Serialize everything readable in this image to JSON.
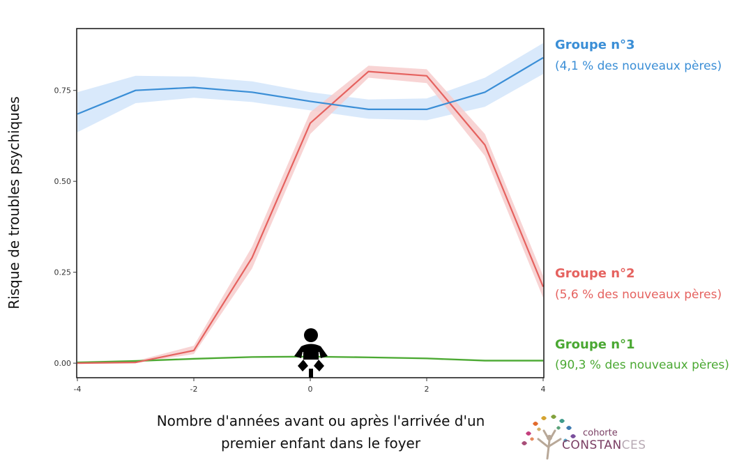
{
  "chart_data": {
    "type": "line",
    "title": "",
    "xlabel_lines": [
      "Nombre d'années avant ou après l'arrivée d'un",
      "premier enfant dans le foyer"
    ],
    "ylabel": "Risque de troubles psychiques",
    "xlim": [
      -4,
      4
    ],
    "ylim": [
      -0.04,
      0.92
    ],
    "x_ticks": [
      -4,
      -2,
      0,
      2,
      4
    ],
    "x_tick_labels": [
      "-4",
      "-2",
      "0",
      "2",
      "4"
    ],
    "y_ticks": [
      0.0,
      0.25,
      0.5,
      0.75
    ],
    "y_tick_labels": [
      "0.00",
      "0.25",
      "0.50",
      "0.75"
    ],
    "grid": false,
    "x": [
      -4,
      -3,
      -2,
      -1,
      0,
      1,
      2,
      3,
      4
    ],
    "series": [
      {
        "name": "Groupe n°3",
        "subtitle": "(4,1 % des nouveaux pères)",
        "color": "#3a8ed6",
        "band_color": "#d2e5fa",
        "values": [
          0.685,
          0.75,
          0.758,
          0.745,
          0.72,
          0.698,
          0.698,
          0.745,
          0.84
        ],
        "lower": [
          0.635,
          0.715,
          0.73,
          0.718,
          0.695,
          0.672,
          0.668,
          0.705,
          0.795
        ],
        "upper": [
          0.745,
          0.79,
          0.788,
          0.775,
          0.745,
          0.725,
          0.728,
          0.785,
          0.88
        ]
      },
      {
        "name": "Groupe n°2",
        "subtitle": "(5,6 % des nouveaux pères)",
        "color": "#e5625f",
        "band_color": "#f7cccc",
        "values": [
          0.0,
          0.002,
          0.035,
          0.29,
          0.66,
          0.802,
          0.79,
          0.6,
          0.21
        ],
        "lower": [
          0.0,
          0.0,
          0.025,
          0.26,
          0.63,
          0.785,
          0.77,
          0.57,
          0.18
        ],
        "upper": [
          0.004,
          0.006,
          0.048,
          0.32,
          0.69,
          0.818,
          0.808,
          0.63,
          0.24
        ]
      },
      {
        "name": "Groupe n°1",
        "subtitle": "(90,3 % des nouveaux pères)",
        "color": "#4aa832",
        "band_color": "#d3edc8",
        "values": [
          0.002,
          0.006,
          0.012,
          0.017,
          0.018,
          0.016,
          0.013,
          0.007,
          0.007
        ],
        "lower": [
          0.0,
          0.003,
          0.009,
          0.014,
          0.015,
          0.013,
          0.01,
          0.004,
          0.004
        ],
        "upper": [
          0.005,
          0.009,
          0.015,
          0.02,
          0.021,
          0.019,
          0.016,
          0.01,
          0.01
        ]
      }
    ],
    "annotation_icon": "baby-icon",
    "annotation_x": 0
  },
  "logo": {
    "icon": "constances-tree-logo",
    "line1": "cohorte",
    "line2_part1": "CONSTAN",
    "line2_part2": "CES"
  }
}
